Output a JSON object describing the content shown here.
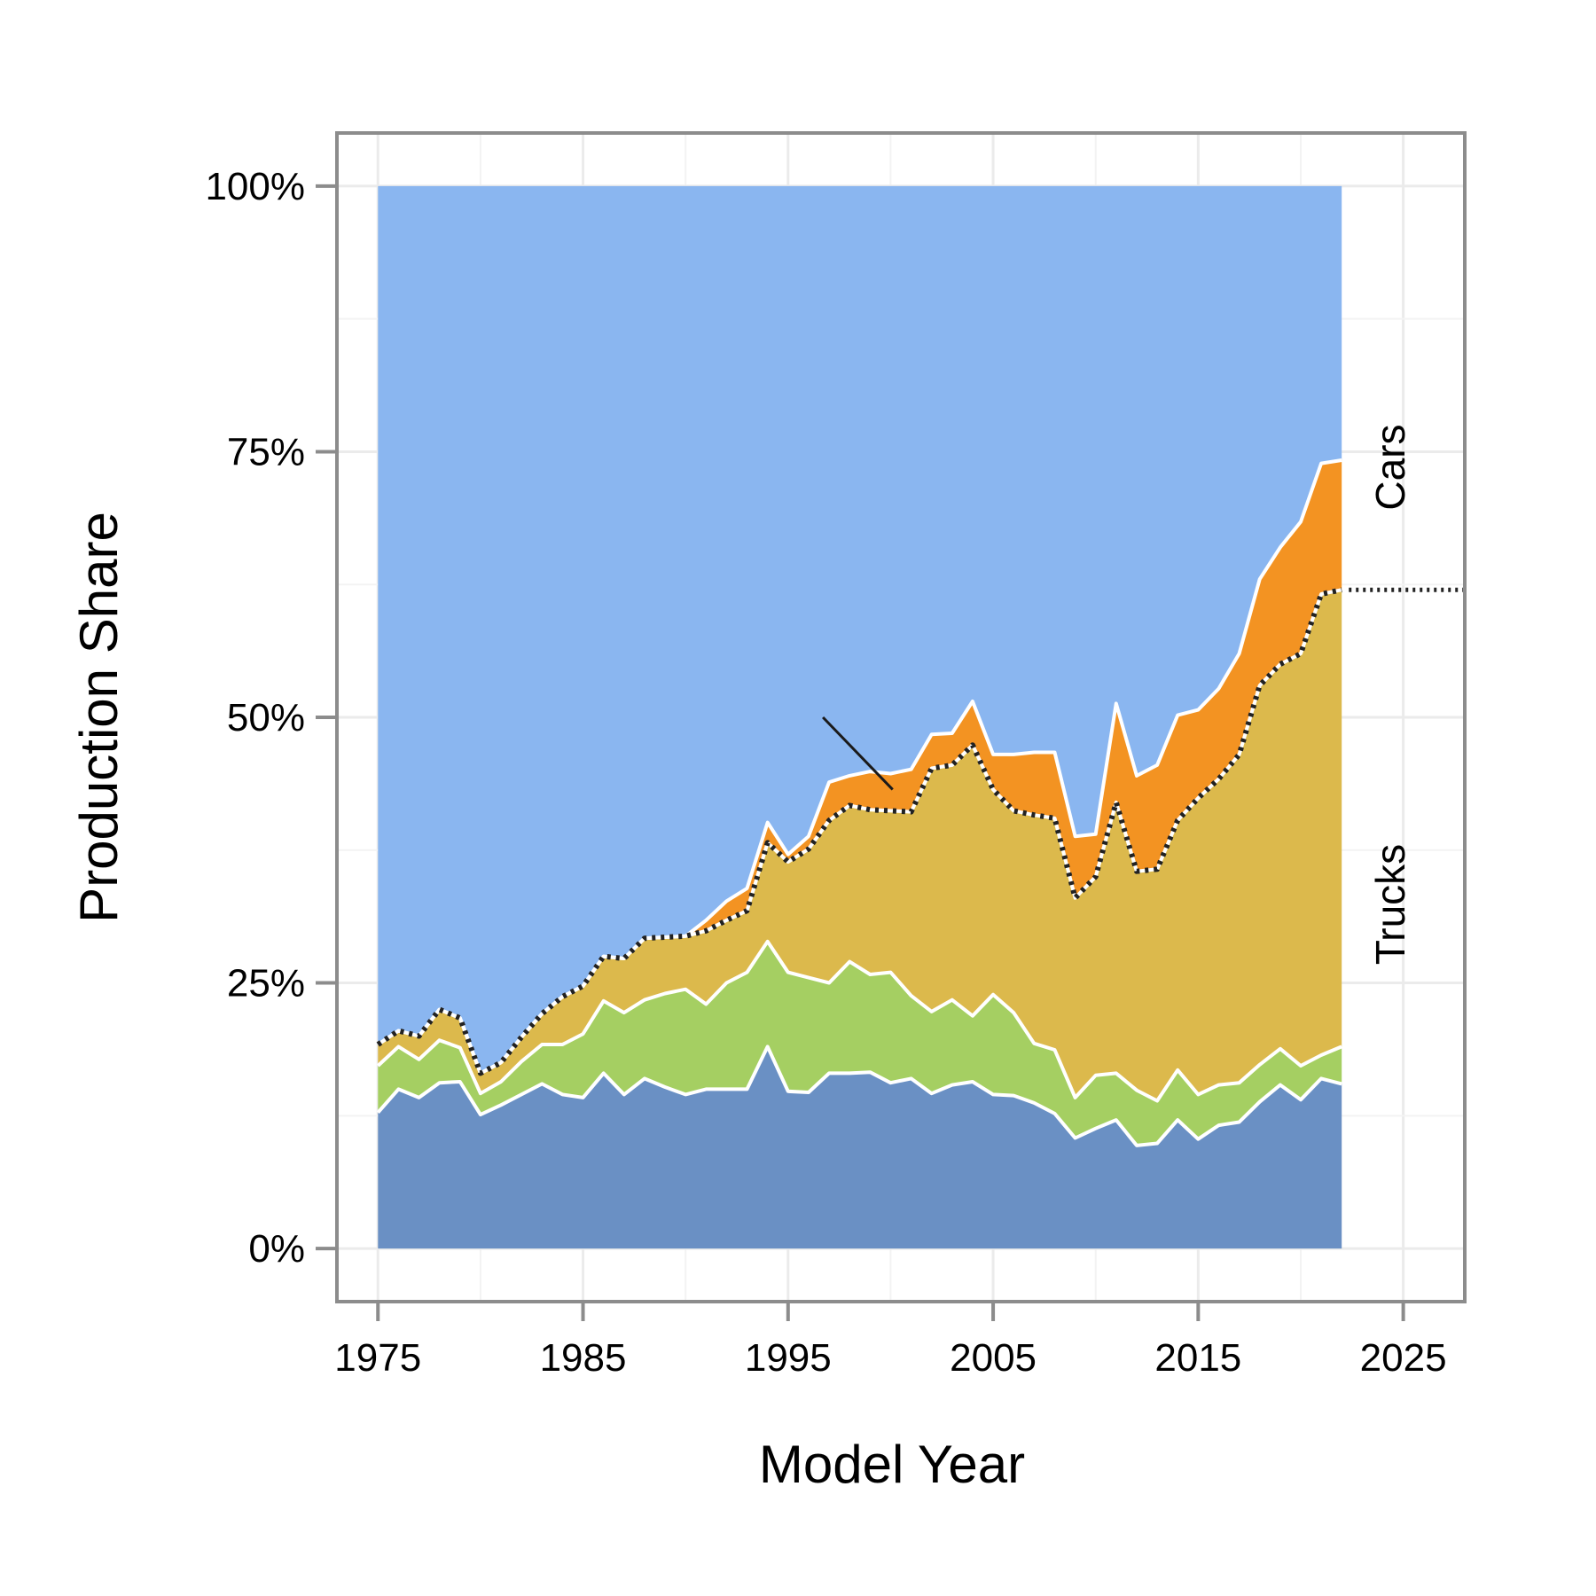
{
  "chart_data": {
    "type": "area",
    "stacked": true,
    "title": "",
    "xlabel": "Model Year",
    "ylabel": "Production Share",
    "xlim": [
      1973,
      2028
    ],
    "ylim": [
      -0.05,
      1.05
    ],
    "xticks": [
      1975,
      1985,
      1995,
      2005,
      2015,
      2025
    ],
    "yticks": [
      0,
      0.25,
      0.5,
      0.75,
      1.0
    ],
    "ytick_labels": [
      "0%",
      "25%",
      "50%",
      "75%",
      "100%"
    ],
    "grid": true,
    "colors": {
      "pickup": "#6a90c4",
      "van": "#a5cf62",
      "truck_suv": "#dcb94c",
      "car_suv": "#f39322",
      "sedan_wagon": "#8ab6f0"
    },
    "series_labels": {
      "cars": "Cars",
      "trucks": "Trucks"
    },
    "x": [
      1975,
      1976,
      1977,
      1978,
      1979,
      1980,
      1981,
      1982,
      1983,
      1984,
      1985,
      1986,
      1987,
      1988,
      1989,
      1990,
      1991,
      1992,
      1993,
      1994,
      1995,
      1996,
      1997,
      1998,
      1999,
      2000,
      2001,
      2002,
      2003,
      2004,
      2005,
      2006,
      2007,
      2008,
      2009,
      2010,
      2011,
      2012,
      2013,
      2014,
      2015,
      2016,
      2017,
      2018,
      2019,
      2020,
      2021,
      2022
    ],
    "series": [
      {
        "values": [
          0.128,
          0.15,
          0.142,
          0.156,
          0.157,
          0.126,
          0.135,
          0.145,
          0.155,
          0.145,
          0.142,
          0.165,
          0.145,
          0.16,
          0.152,
          0.145,
          0.15,
          0.15,
          0.15,
          0.19,
          0.148,
          0.147,
          0.165,
          0.165,
          0.166,
          0.156,
          0.16,
          0.146,
          0.154,
          0.157,
          0.145,
          0.144,
          0.137,
          0.127,
          0.104,
          0.113,
          0.121,
          0.097,
          0.099,
          0.121,
          0.103,
          0.116,
          0.119,
          0.138,
          0.154,
          0.14,
          0.16,
          0.155
        ]
      },
      {
        "values": [
          0.044,
          0.04,
          0.036,
          0.04,
          0.032,
          0.02,
          0.022,
          0.031,
          0.037,
          0.047,
          0.06,
          0.068,
          0.077,
          0.074,
          0.088,
          0.099,
          0.08,
          0.1,
          0.11,
          0.099,
          0.112,
          0.108,
          0.085,
          0.105,
          0.092,
          0.104,
          0.078,
          0.077,
          0.08,
          0.062,
          0.094,
          0.078,
          0.056,
          0.06,
          0.038,
          0.05,
          0.044,
          0.052,
          0.04,
          0.047,
          0.042,
          0.038,
          0.037,
          0.035,
          0.034,
          0.032,
          0.022,
          0.035
        ]
      },
      {
        "values": [
          0.02,
          0.015,
          0.022,
          0.029,
          0.028,
          0.019,
          0.018,
          0.023,
          0.029,
          0.045,
          0.045,
          0.042,
          0.051,
          0.058,
          0.053,
          0.05,
          0.069,
          0.059,
          0.058,
          0.093,
          0.104,
          0.121,
          0.153,
          0.147,
          0.155,
          0.152,
          0.173,
          0.229,
          0.221,
          0.255,
          0.193,
          0.19,
          0.215,
          0.218,
          0.188,
          0.187,
          0.255,
          0.206,
          0.218,
          0.235,
          0.279,
          0.288,
          0.309,
          0.357,
          0.362,
          0.388,
          0.434,
          0.43
        ]
      },
      {
        "values": [
          0.0,
          0.0,
          0.0,
          0.0,
          0.0,
          0.0,
          0.0,
          0.0,
          0.0,
          0.0,
          0.0,
          0.0,
          0.0,
          0.0,
          0.0,
          0.0,
          0.01,
          0.018,
          0.021,
          0.019,
          0.007,
          0.012,
          0.036,
          0.028,
          0.036,
          0.035,
          0.04,
          0.032,
          0.03,
          0.041,
          0.033,
          0.053,
          0.059,
          0.062,
          0.058,
          0.04,
          0.093,
          0.09,
          0.098,
          0.099,
          0.083,
          0.085,
          0.095,
          0.1,
          0.11,
          0.124,
          0.123,
          0.122
        ]
      },
      {
        "values": [
          0.808,
          0.795,
          0.8,
          0.775,
          0.783,
          0.835,
          0.825,
          0.801,
          0.779,
          0.763,
          0.753,
          0.725,
          0.727,
          0.708,
          0.707,
          0.706,
          0.691,
          0.673,
          0.661,
          0.599,
          0.629,
          0.612,
          0.561,
          0.555,
          0.551,
          0.553,
          0.549,
          0.516,
          0.515,
          0.485,
          0.535,
          0.535,
          0.533,
          0.533,
          0.612,
          0.61,
          0.487,
          0.555,
          0.545,
          0.498,
          0.493,
          0.473,
          0.44,
          0.37,
          0.34,
          0.316,
          0.261,
          0.258
        ]
      }
    ]
  }
}
